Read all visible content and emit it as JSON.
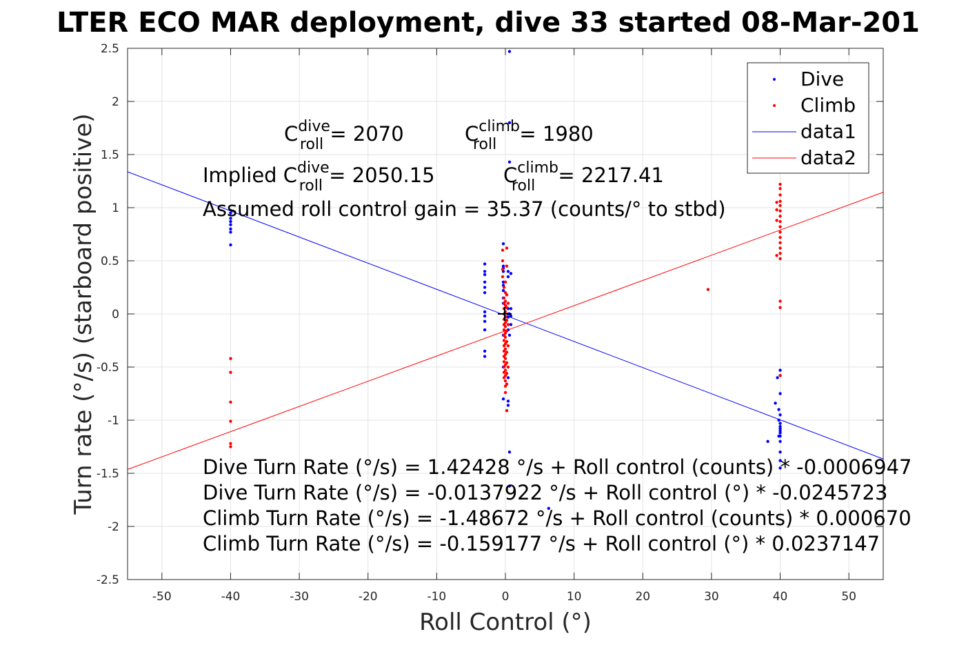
{
  "chart_data": {
    "type": "scatter",
    "title": "LTER ECO MAR deployment, dive 33 started 08-Mar-201",
    "xlabel": "Roll Control (°)",
    "ylabel": "Turn rate (°/s) (starboard positive)",
    "xlim": [
      -55,
      55
    ],
    "ylim": [
      -2.5,
      2.5
    ],
    "xticks": [
      -50,
      -40,
      -30,
      -20,
      -10,
      0,
      10,
      20,
      30,
      40,
      50
    ],
    "xtick_labels": [
      "-50",
      "-40",
      "-30",
      "-20",
      "-10",
      "0",
      "10",
      "20",
      "30",
      "40",
      "50"
    ],
    "yticks": [
      -2.5,
      -2,
      -1.5,
      -1,
      -0.5,
      0,
      0.5,
      1,
      1.5,
      2,
      2.5
    ],
    "ytick_labels": [
      "-2.5",
      "-2",
      "-1.5",
      "-1",
      "-0.5",
      "0",
      "0.5",
      "1",
      "1.5",
      "2",
      "2.5"
    ],
    "grid": true,
    "legend_position": "top-right",
    "legend": [
      "Dive",
      "Climb",
      "data1",
      "data2"
    ],
    "colors": {
      "dive": "#0000ff",
      "climb": "#ff0000",
      "data1": "#0000ff",
      "data2": "#ff0000"
    },
    "series": [
      {
        "name": "Dive",
        "mode": "markers",
        "points": [
          [
            -40,
            0.95
          ],
          [
            -40,
            0.9
          ],
          [
            -40,
            0.87
          ],
          [
            -40,
            0.84
          ],
          [
            -40,
            0.8
          ],
          [
            -40,
            0.77
          ],
          [
            -40,
            0.65
          ],
          [
            -3,
            0.47
          ],
          [
            -3,
            0.4
          ],
          [
            -3,
            0.37
          ],
          [
            -3,
            0.3
          ],
          [
            -3,
            0.25
          ],
          [
            -3,
            0.2
          ],
          [
            -3,
            0.02
          ],
          [
            -3,
            -0.02
          ],
          [
            -3,
            -0.07
          ],
          [
            -3,
            -0.15
          ],
          [
            -3,
            -0.35
          ],
          [
            -3,
            -0.4
          ],
          [
            -0.3,
            0.66
          ],
          [
            -0.3,
            0.45
          ],
          [
            -0.3,
            0.43
          ],
          [
            -0.3,
            0.4
          ],
          [
            -0.3,
            0.3
          ],
          [
            -0.3,
            0.27
          ],
          [
            -0.3,
            0.22
          ],
          [
            -0.3,
            0.15
          ],
          [
            -0.3,
            0.1
          ],
          [
            -0.3,
            -0.2
          ],
          [
            -0.3,
            -0.5
          ],
          [
            -0.3,
            -0.8
          ],
          [
            0.4,
            0.4
          ],
          [
            0.4,
            0.35
          ],
          [
            0.4,
            0.05
          ],
          [
            0.4,
            0.0
          ],
          [
            0.4,
            -0.03
          ],
          [
            0.4,
            -0.15
          ],
          [
            0.4,
            -0.6
          ],
          [
            0.4,
            -0.82
          ],
          [
            0.4,
            -0.86
          ],
          [
            0.6,
            2.47
          ],
          [
            0.6,
            1.8
          ],
          [
            0.6,
            1.43
          ],
          [
            0.6,
            0.0
          ],
          [
            0.6,
            -0.2
          ],
          [
            0.6,
            -1.3
          ],
          [
            0.6,
            -1.62
          ],
          [
            0.8,
            0.38
          ],
          [
            0.8,
            0.05
          ],
          [
            0.8,
            -0.02
          ],
          [
            0.8,
            -0.1
          ],
          [
            6.3,
            -1.83
          ],
          [
            38.2,
            -1.2
          ],
          [
            39.3,
            -0.84
          ],
          [
            39.6,
            -0.6
          ],
          [
            39.8,
            -1.15
          ],
          [
            39.8,
            -1.0
          ],
          [
            39.8,
            -0.9
          ],
          [
            40,
            -0.53
          ],
          [
            40,
            -0.58
          ],
          [
            40,
            -0.75
          ],
          [
            40,
            -0.95
          ],
          [
            40,
            -1.03
          ],
          [
            40,
            -1.06
          ],
          [
            40,
            -1.08
          ],
          [
            40,
            -1.1
          ],
          [
            40,
            -1.12
          ],
          [
            40,
            -1.15
          ],
          [
            40,
            -1.2
          ],
          [
            40,
            -1.3
          ],
          [
            40,
            -1.38
          ],
          [
            40,
            -1.45
          ]
        ]
      },
      {
        "name": "Climb",
        "mode": "markers",
        "points": [
          [
            -40,
            -0.42
          ],
          [
            -40,
            -0.55
          ],
          [
            -40,
            -0.83
          ],
          [
            -40,
            -1.01
          ],
          [
            -40,
            -1.22
          ],
          [
            -40,
            -1.25
          ],
          [
            -0.4,
            0.6
          ],
          [
            -0.4,
            0.5
          ],
          [
            -0.4,
            0.42
          ],
          [
            -0.4,
            0.35
          ],
          [
            -0.2,
            0.25
          ],
          [
            -0.2,
            0.15
          ],
          [
            -0.2,
            0.1
          ],
          [
            -0.2,
            0.05
          ],
          [
            -0.2,
            0.0
          ],
          [
            -0.2,
            -0.05
          ],
          [
            -0.2,
            -0.1
          ],
          [
            -0.2,
            -0.15
          ],
          [
            -0.2,
            -0.2
          ],
          [
            -0.2,
            -0.25
          ],
          [
            -0.2,
            -0.3
          ],
          [
            -0.2,
            -0.35
          ],
          [
            -0.2,
            -0.4
          ],
          [
            -0.2,
            -0.45
          ],
          [
            -0.2,
            -0.5
          ],
          [
            -0.2,
            -0.55
          ],
          [
            -0.2,
            -0.6
          ],
          [
            0,
            0.3
          ],
          [
            0,
            0.2
          ],
          [
            0,
            0.12
          ],
          [
            0,
            0.08
          ],
          [
            0,
            0.02
          ],
          [
            0,
            -0.03
          ],
          [
            0,
            -0.08
          ],
          [
            0,
            -0.12
          ],
          [
            0,
            -0.18
          ],
          [
            0,
            -0.22
          ],
          [
            0,
            -0.28
          ],
          [
            0,
            -0.33
          ],
          [
            0,
            -0.38
          ],
          [
            0,
            -0.42
          ],
          [
            0,
            -0.48
          ],
          [
            0,
            -0.53
          ],
          [
            0,
            -0.58
          ],
          [
            0,
            -0.63
          ],
          [
            0,
            -0.68
          ],
          [
            0,
            -0.74
          ],
          [
            0.2,
            0.62
          ],
          [
            0.2,
            0.45
          ],
          [
            0.2,
            0.18
          ],
          [
            0.2,
            0.06
          ],
          [
            0.2,
            -0.06
          ],
          [
            0.2,
            -0.16
          ],
          [
            0.2,
            -0.26
          ],
          [
            0.2,
            -0.36
          ],
          [
            0.2,
            -0.46
          ],
          [
            0.2,
            -0.56
          ],
          [
            0.2,
            -0.66
          ],
          [
            0.2,
            -0.91
          ],
          [
            0.4,
            0.1
          ],
          [
            0.4,
            -0.1
          ],
          [
            0.4,
            -0.3
          ],
          [
            0.4,
            -0.5
          ],
          [
            29.5,
            0.23
          ],
          [
            39.5,
            1.05
          ],
          [
            39.5,
            0.98
          ],
          [
            39.5,
            0.88
          ],
          [
            39.5,
            0.55
          ],
          [
            40,
            1.22
          ],
          [
            40,
            1.18
          ],
          [
            40,
            1.12
          ],
          [
            40,
            1.06
          ],
          [
            40,
            1.02
          ],
          [
            40,
            0.97
          ],
          [
            40,
            0.92
          ],
          [
            40,
            0.87
          ],
          [
            40,
            0.82
          ],
          [
            40,
            0.77
          ],
          [
            40,
            0.72
          ],
          [
            40,
            0.67
          ],
          [
            40,
            0.62
          ],
          [
            40,
            0.57
          ],
          [
            40,
            0.52
          ],
          [
            40,
            0.12
          ],
          [
            40,
            0.06
          ],
          [
            40,
            -0.58
          ]
        ]
      },
      {
        "name": "data1",
        "mode": "line",
        "points": [
          [
            -55,
            1.3376
          ],
          [
            55,
            -1.3652
          ]
        ]
      },
      {
        "name": "data2",
        "mode": "line",
        "points": [
          [
            -55,
            -1.4635
          ],
          [
            55,
            1.1452
          ]
        ]
      }
    ],
    "annotations": {
      "cdive_base": "C",
      "cdive_sup": "dive",
      "cdive_sub": "roll",
      "cdive_value": " = 2070",
      "cclimb_base": "C",
      "cclimb_sup": "climb",
      "cclimb_sub": "roll",
      "cclimb_value": " = 1980",
      "implied_prefix": "Implied C",
      "implied_dive_sup": "dive",
      "implied_dive_sub": "roll",
      "implied_dive_value": " = 2050.15",
      "implied_climb_base": "C",
      "implied_climb_sup": "climb",
      "implied_climb_sub": "roll",
      "implied_climb_value": " = 2217.41",
      "gain": "Assumed roll control gain = 35.37 (counts/° to stbd)",
      "fit1": "Dive Turn Rate (°/s) = 1.42428 °/s + Roll control (counts) * -0.0006947",
      "fit2": "Dive Turn Rate (°/s) = -0.0137922 °/s + Roll control (°) * -0.0245723",
      "fit3": "Climb Turn Rate (°/s) = -1.48672 °/s + Roll control (counts) * 0.000670",
      "fit4": "Climb Turn Rate (°/s) = -0.159177 °/s + Roll control (°) * 0.0237147"
    }
  }
}
